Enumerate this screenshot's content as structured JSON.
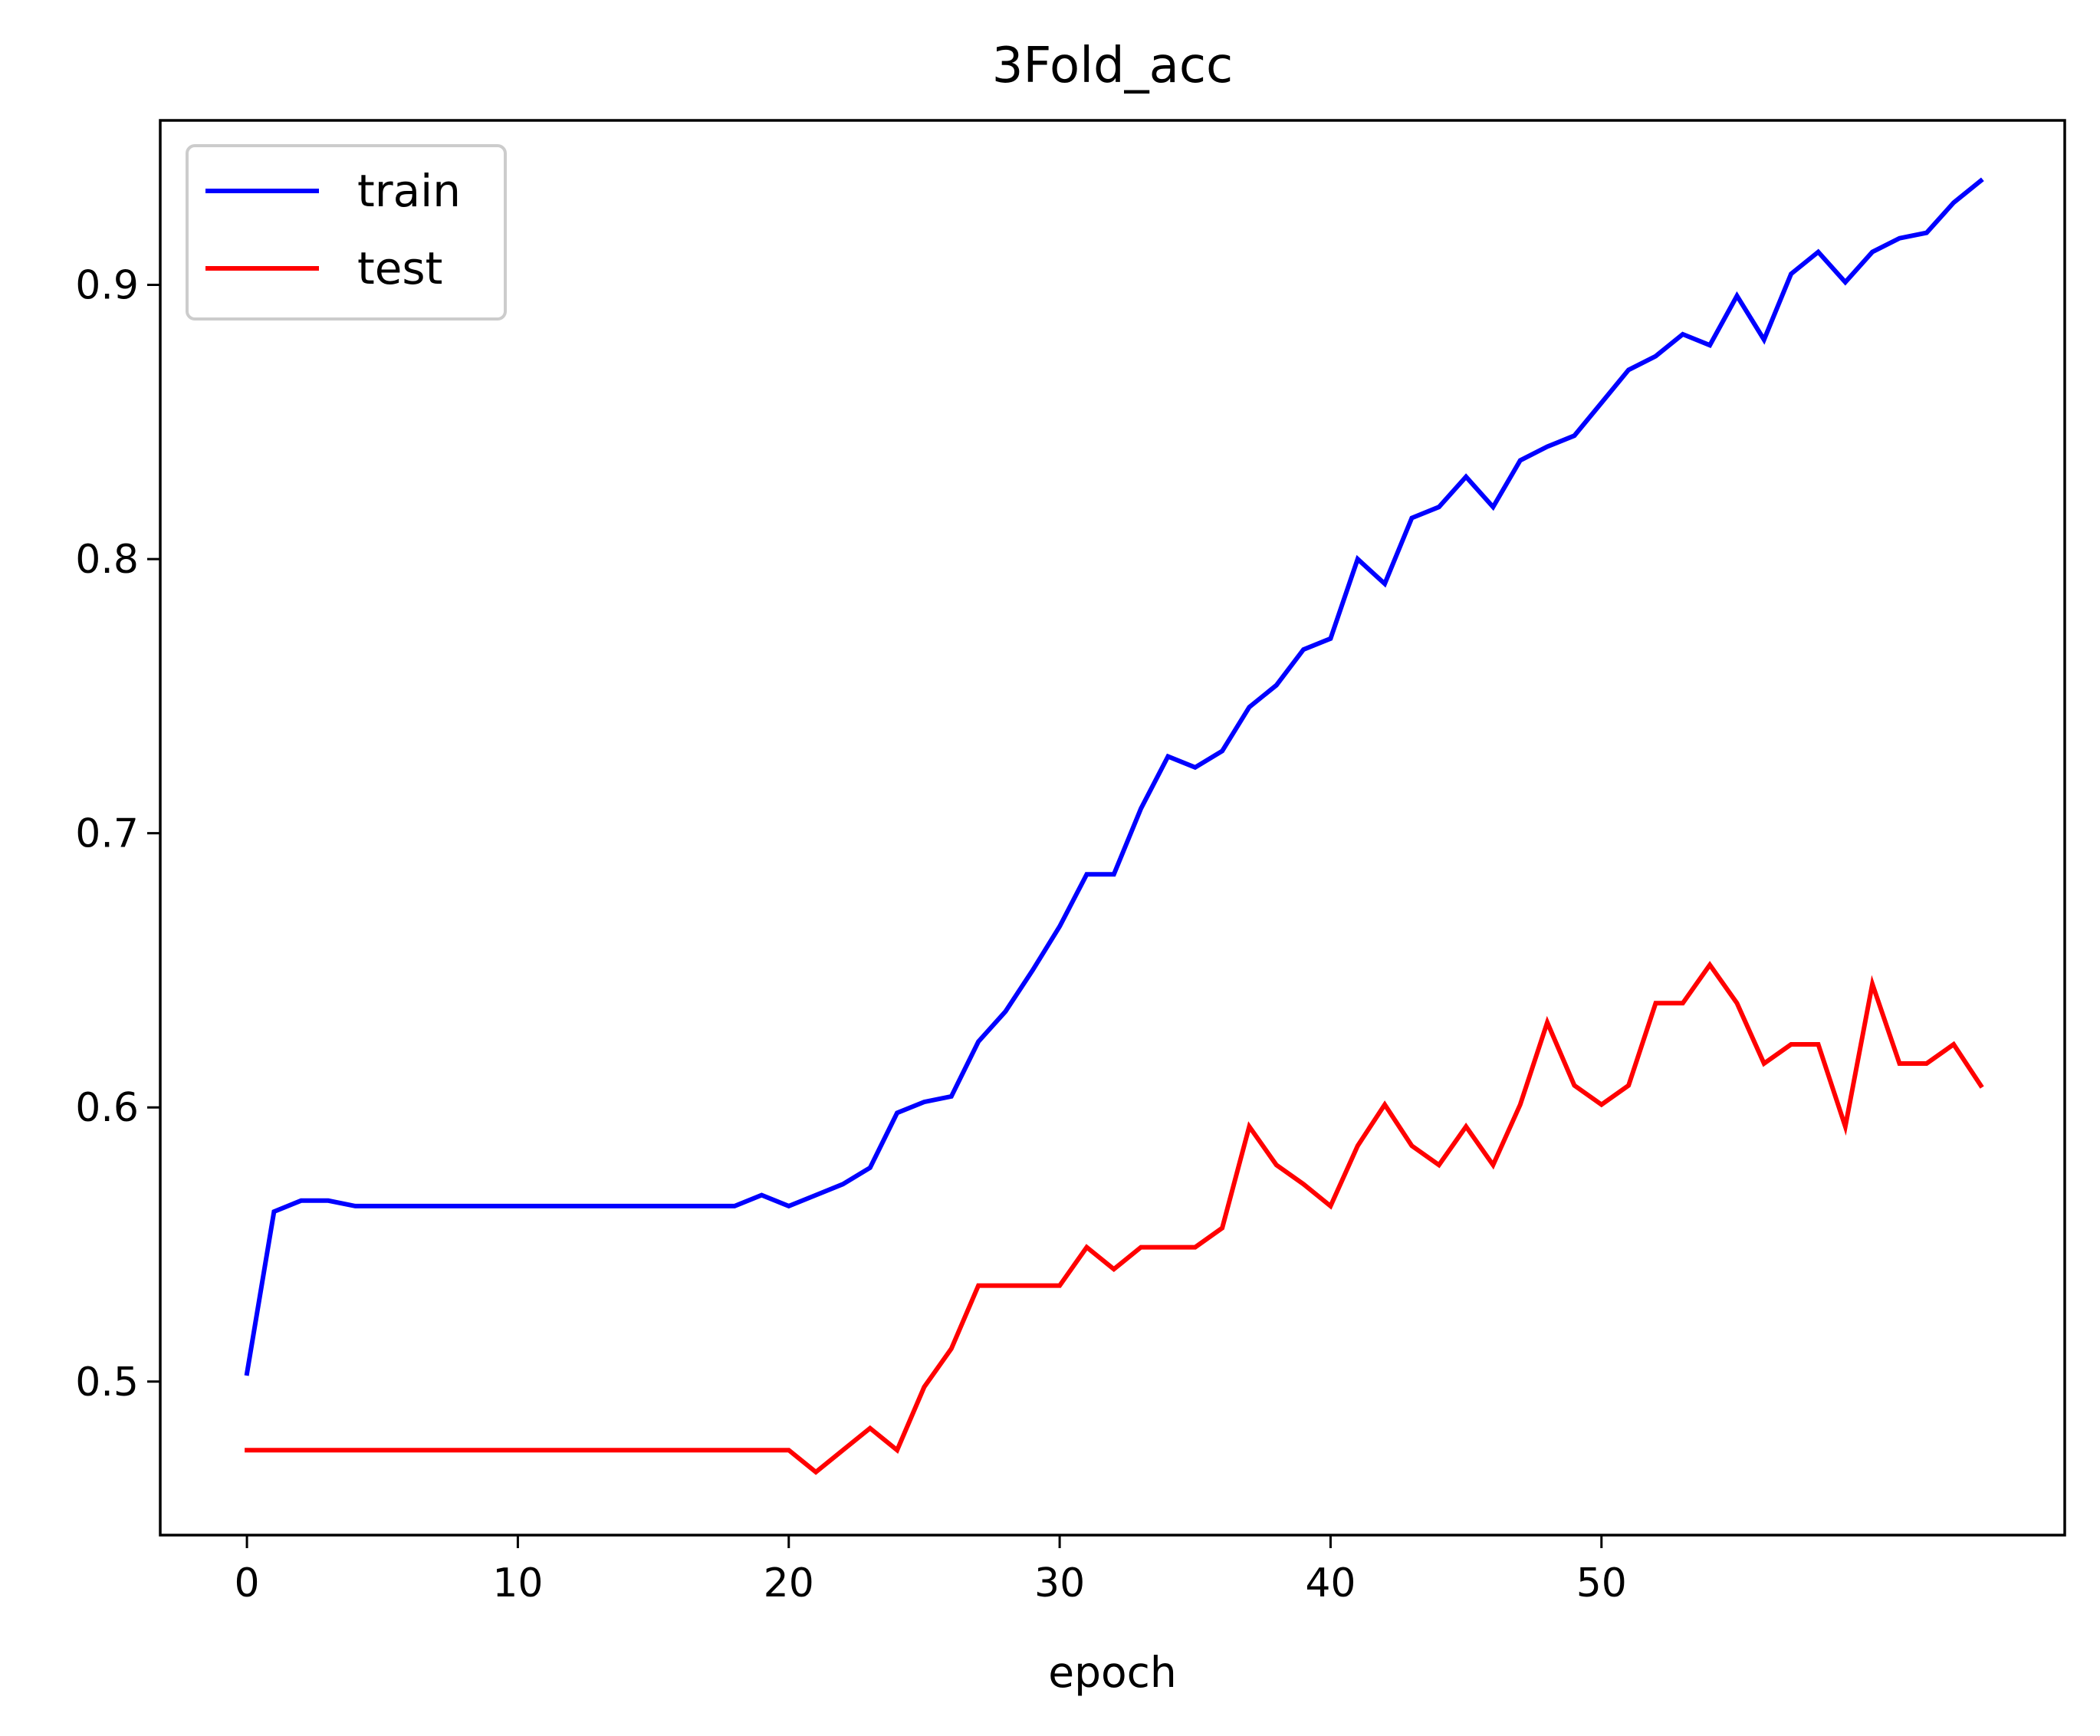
{
  "chart_data": {
    "type": "line",
    "title": "3Fold_acc",
    "xlabel": "epoch",
    "ylabel": "",
    "xlim": [
      -3.2,
      67.1
    ],
    "ylim": [
      0.444,
      0.96
    ],
    "xticks": [
      0,
      10,
      20,
      30,
      40,
      50
    ],
    "yticks": [
      0.5,
      0.6,
      0.7,
      0.8,
      0.9
    ],
    "ytick_labels": [
      "0.5",
      "0.6",
      "0.7",
      "0.8",
      "0.9"
    ],
    "grid": false,
    "legend": "top-left",
    "x": [
      0,
      1,
      2,
      3,
      4,
      5,
      6,
      7,
      8,
      9,
      10,
      11,
      12,
      13,
      14,
      15,
      16,
      17,
      18,
      19,
      20,
      21,
      22,
      23,
      24,
      25,
      26,
      27,
      28,
      29,
      30,
      31,
      32,
      33,
      34,
      35,
      36,
      37,
      38,
      39,
      40,
      41,
      42,
      43,
      44,
      45,
      46,
      47,
      48,
      49,
      50,
      51,
      52,
      53,
      54,
      55,
      56,
      57,
      58,
      59,
      60,
      61,
      62,
      63,
      64
    ],
    "series": [
      {
        "name": "train",
        "color": "#0000ff",
        "values": [
          0.503,
          0.562,
          0.566,
          0.566,
          0.564,
          0.564,
          0.564,
          0.564,
          0.564,
          0.564,
          0.564,
          0.564,
          0.564,
          0.564,
          0.564,
          0.564,
          0.564,
          0.564,
          0.564,
          0.568,
          0.564,
          0.568,
          0.572,
          0.578,
          0.598,
          0.602,
          0.604,
          0.624,
          0.635,
          0.65,
          0.666,
          0.685,
          0.685,
          0.709,
          0.728,
          0.724,
          0.73,
          0.746,
          0.754,
          0.767,
          0.771,
          0.8,
          0.791,
          0.815,
          0.819,
          0.83,
          0.819,
          0.836,
          0.841,
          0.845,
          0.857,
          0.869,
          0.874,
          0.882,
          0.878,
          0.896,
          0.88,
          0.904,
          0.912,
          0.901,
          0.912,
          0.917,
          0.919,
          0.93,
          0.938
        ]
      },
      {
        "name": "test",
        "color": "#ff0000",
        "values": [
          0.475,
          0.475,
          0.475,
          0.475,
          0.475,
          0.475,
          0.475,
          0.475,
          0.475,
          0.475,
          0.475,
          0.475,
          0.475,
          0.475,
          0.475,
          0.475,
          0.475,
          0.475,
          0.475,
          0.475,
          0.475,
          0.467,
          0.475,
          0.483,
          0.475,
          0.498,
          0.512,
          0.535,
          0.535,
          0.535,
          0.535,
          0.549,
          0.541,
          0.549,
          0.549,
          0.549,
          0.556,
          0.593,
          0.579,
          0.572,
          0.564,
          0.586,
          0.601,
          0.586,
          0.579,
          0.593,
          0.579,
          0.601,
          0.631,
          0.608,
          0.601,
          0.608,
          0.638,
          0.638,
          0.652,
          0.638,
          0.616,
          0.623,
          0.623,
          0.593,
          0.645,
          0.616,
          0.616,
          0.623,
          0.608
        ]
      }
    ]
  }
}
